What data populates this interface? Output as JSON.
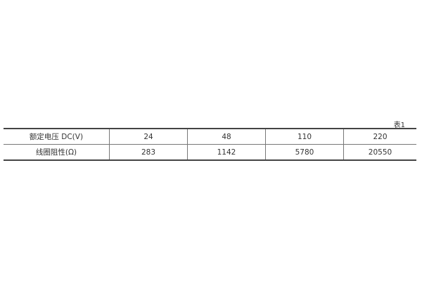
{
  "caption": "表1",
  "table": {
    "rows": [
      {
        "label": "额定电压 DC(V)",
        "values": [
          "24",
          "48",
          "110",
          "220"
        ]
      },
      {
        "label": "线圈阻性(Ω)",
        "values": [
          "283",
          "1142",
          "5780",
          "20550"
        ]
      }
    ]
  }
}
